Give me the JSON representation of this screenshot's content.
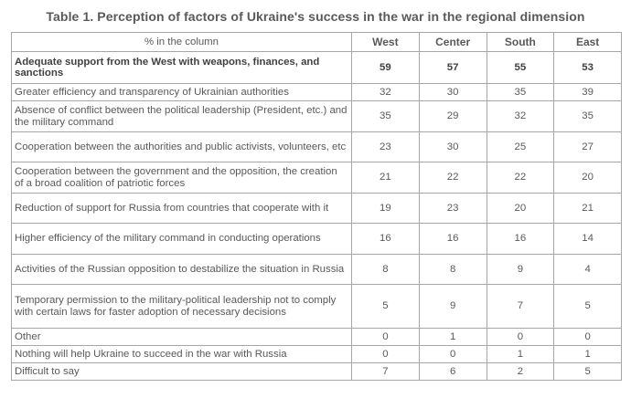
{
  "title": "Table 1. Perception of factors of Ukraine's success in the war in the regional dimension",
  "table": {
    "header_label": "% in the column",
    "columns": [
      "West",
      "Center",
      "South",
      "East"
    ],
    "rows": [
      {
        "label": "Adequate support from the West with weapons, finances, and sanctions",
        "values": [
          "59",
          "57",
          "55",
          "53"
        ],
        "bold": true
      },
      {
        "label": "Greater efficiency and transparency of Ukrainian authorities",
        "values": [
          "32",
          "30",
          "35",
          "39"
        ]
      },
      {
        "label": "Absence of conflict between the political leadership (President, etc.) and the military command",
        "values": [
          "35",
          "29",
          "32",
          "35"
        ]
      },
      {
        "label": "Cooperation between the authorities and public activists, volunteers, etc",
        "values": [
          "23",
          "30",
          "25",
          "27"
        ]
      },
      {
        "label": "Cooperation between the government and the opposition, the creation of a broad coalition of patriotic forces",
        "values": [
          "21",
          "22",
          "22",
          "20"
        ]
      },
      {
        "label": "Reduction of support for Russia from countries that cooperate with it",
        "values": [
          "19",
          "23",
          "20",
          "21"
        ]
      },
      {
        "label": "Higher efficiency of the military command in conducting operations",
        "values": [
          "16",
          "16",
          "16",
          "14"
        ]
      },
      {
        "label": "Activities of the Russian opposition to destabilize the situation in Russia",
        "values": [
          "8",
          "8",
          "9",
          "4"
        ]
      },
      {
        "label": "Temporary permission to the military-political leadership not to comply with certain laws for faster adoption of necessary decisions",
        "values": [
          "5",
          "9",
          "7",
          "5"
        ]
      },
      {
        "label": "Other",
        "values": [
          "0",
          "1",
          "0",
          "0"
        ]
      },
      {
        "label": "Nothing will help Ukraine to succeed in the war with Russia",
        "values": [
          "0",
          "0",
          "1",
          "1"
        ]
      },
      {
        "label": "Difficult to say",
        "values": [
          "7",
          "6",
          "2",
          "5"
        ]
      }
    ]
  }
}
